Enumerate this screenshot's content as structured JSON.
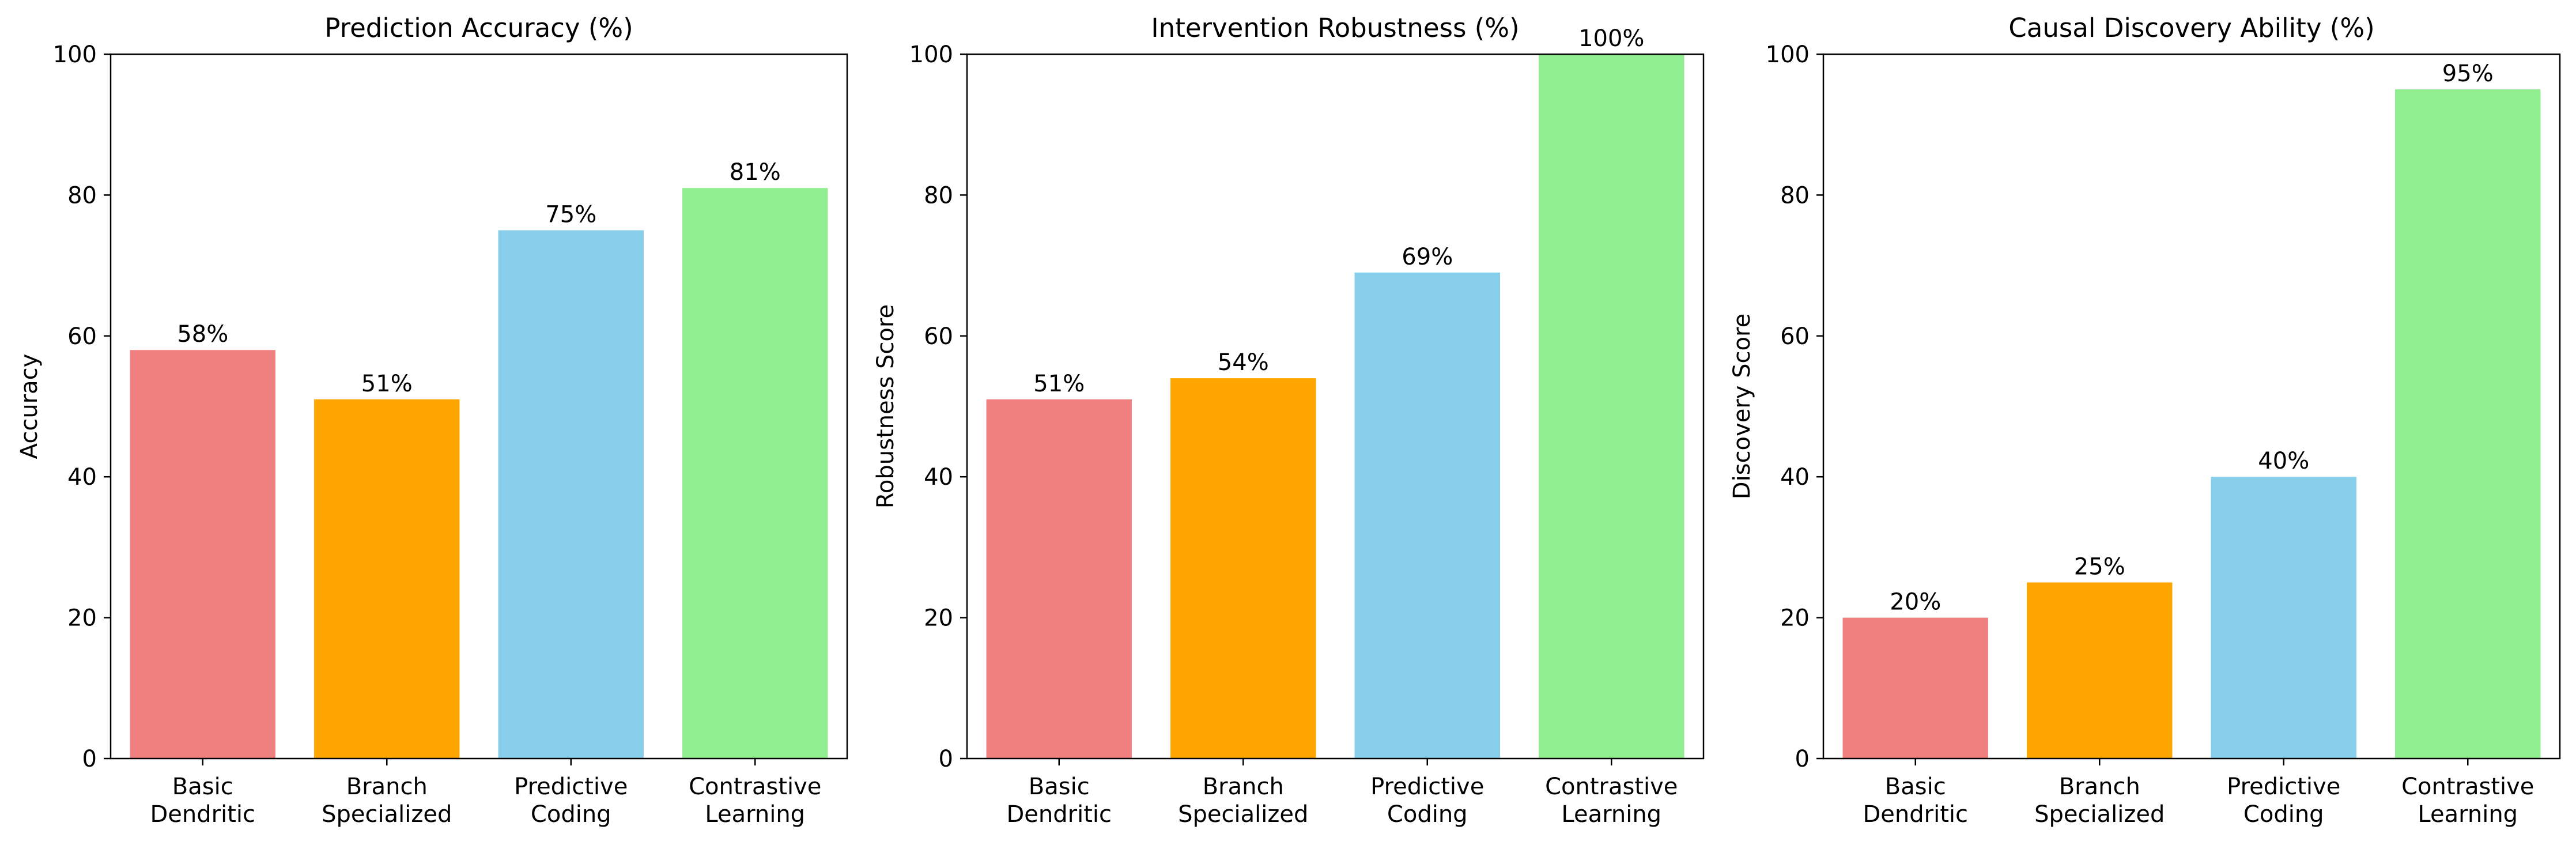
{
  "chart_data": [
    {
      "type": "bar",
      "title": "Prediction Accuracy (%)",
      "xlabel": "",
      "ylabel": "Accuracy",
      "ylim": [
        0,
        100
      ],
      "yticks": [
        "0",
        "20",
        "40",
        "60",
        "80",
        "100"
      ],
      "categories": [
        [
          "Basic",
          "Dendritic"
        ],
        [
          "Branch",
          "Specialized"
        ],
        [
          "Predictive",
          "Coding"
        ],
        [
          "Contrastive",
          "Learning"
        ]
      ],
      "values": [
        58,
        51,
        75,
        81
      ],
      "data_labels": [
        "58%",
        "51%",
        "75%",
        "81%"
      ],
      "colors": [
        "#f08080",
        "#ffa500",
        "#87ceeb",
        "#90ee90"
      ],
      "grid": false
    },
    {
      "type": "bar",
      "title": "Intervention Robustness (%)",
      "xlabel": "",
      "ylabel": "Robustness Score",
      "ylim": [
        0,
        100
      ],
      "yticks": [
        "0",
        "20",
        "40",
        "60",
        "80",
        "100"
      ],
      "categories": [
        [
          "Basic",
          "Dendritic"
        ],
        [
          "Branch",
          "Specialized"
        ],
        [
          "Predictive",
          "Coding"
        ],
        [
          "Contrastive",
          "Learning"
        ]
      ],
      "values": [
        51,
        54,
        69,
        100
      ],
      "data_labels": [
        "51%",
        "54%",
        "69%",
        "100%"
      ],
      "colors": [
        "#f08080",
        "#ffa500",
        "#87ceeb",
        "#90ee90"
      ],
      "grid": false
    },
    {
      "type": "bar",
      "title": "Causal Discovery Ability (%)",
      "xlabel": "",
      "ylabel": "Discovery Score",
      "ylim": [
        0,
        100
      ],
      "yticks": [
        "0",
        "20",
        "40",
        "60",
        "80",
        "100"
      ],
      "categories": [
        [
          "Basic",
          "Dendritic"
        ],
        [
          "Branch",
          "Specialized"
        ],
        [
          "Predictive",
          "Coding"
        ],
        [
          "Contrastive",
          "Learning"
        ]
      ],
      "values": [
        20,
        25,
        40,
        95
      ],
      "data_labels": [
        "20%",
        "25%",
        "40%",
        "95%"
      ],
      "colors": [
        "#f08080",
        "#ffa500",
        "#87ceeb",
        "#90ee90"
      ],
      "grid": false
    }
  ]
}
